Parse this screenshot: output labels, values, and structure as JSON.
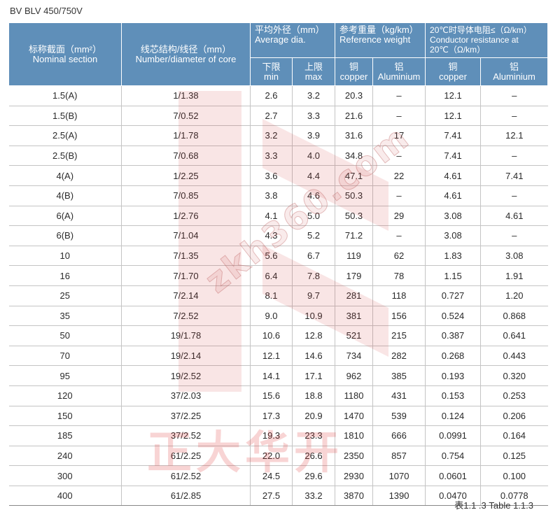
{
  "title": "BV BLV 450/750V",
  "footer": "表1.1 .3 Table 1.1.3",
  "watermark": {
    "url": "zkh360.com",
    "logo_text": "正大华开"
  },
  "colors": {
    "header_bg": "#5f8fb9",
    "header_text": "#ffffff",
    "grid_line": "#c4c4c4"
  },
  "header": {
    "nominal": {
      "cn": "标称截面（mm²）",
      "en": "Nominal section"
    },
    "core": {
      "cn": "线芯结构/线径（mm）",
      "en": "Number/diameter of core"
    },
    "avg_dia": {
      "cn": "平均外径（mm）",
      "en": "Average dia."
    },
    "min": {
      "cn": "下限",
      "en": "min"
    },
    "max": {
      "cn": "上限",
      "en": "max"
    },
    "weight": {
      "cn": "参考重量（kg/km）",
      "en": "Reference weight"
    },
    "copper_w": {
      "cn": "铜",
      "en": "copper"
    },
    "alum_w": {
      "cn": "铝",
      "en": "Aluminium"
    },
    "resistance": {
      "line1": "20℃时导体电阻≤（Ω/km）",
      "line2": "Conductor resistance at",
      "line3": "20℃（Ω/km）"
    },
    "copper_r": {
      "cn": "铜",
      "en": "copper"
    },
    "alum_r": {
      "cn": "铝",
      "en": "Aluminium"
    }
  },
  "rows": [
    [
      "1.5(A)",
      "1/1.38",
      "2.6",
      "3.2",
      "20.3",
      "–",
      "12.1",
      "–"
    ],
    [
      "1.5(B)",
      "7/0.52",
      "2.7",
      "3.3",
      "21.6",
      "–",
      "12.1",
      "–"
    ],
    [
      "2.5(A)",
      "1/1.78",
      "3.2",
      "3.9",
      "31.6",
      "17",
      "7.41",
      "12.1"
    ],
    [
      "2.5(B)",
      "7/0.68",
      "3.3",
      "4.0",
      "34.8",
      "–",
      "7.41",
      "–"
    ],
    [
      "4(A)",
      "1/2.25",
      "3.6",
      "4.4",
      "47.1",
      "22",
      "4.61",
      "7.41"
    ],
    [
      "4(B)",
      "7/0.85",
      "3.8",
      "4.6",
      "50.3",
      "–",
      "4.61",
      "–"
    ],
    [
      "6(A)",
      "1/2.76",
      "4.1",
      "5.0",
      "50.3",
      "29",
      "3.08",
      "4.61"
    ],
    [
      "6(B)",
      "7/1.04",
      "4.3",
      "5.2",
      "71.2",
      "–",
      "3.08",
      "–"
    ],
    [
      "10",
      "7/1.35",
      "5.6",
      "6.7",
      "119",
      "62",
      "1.83",
      "3.08"
    ],
    [
      "16",
      "7/1.70",
      "6.4",
      "7.8",
      "179",
      "78",
      "1.15",
      "1.91"
    ],
    [
      "25",
      "7/2.14",
      "8.1",
      "9.7",
      "281",
      "118",
      "0.727",
      "1.20"
    ],
    [
      "35",
      "7/2.52",
      "9.0",
      "10.9",
      "381",
      "156",
      "0.524",
      "0.868"
    ],
    [
      "50",
      "19/1.78",
      "10.6",
      "12.8",
      "521",
      "215",
      "0.387",
      "0.641"
    ],
    [
      "70",
      "19/2.14",
      "12.1",
      "14.6",
      "734",
      "282",
      "0.268",
      "0.443"
    ],
    [
      "95",
      "19/2.52",
      "14.1",
      "17.1",
      "962",
      "385",
      "0.193",
      "0.320"
    ],
    [
      "120",
      "37/2.03",
      "15.6",
      "18.8",
      "1180",
      "431",
      "0.153",
      "0.253"
    ],
    [
      "150",
      "37/2.25",
      "17.3",
      "20.9",
      "1470",
      "539",
      "0.124",
      "0.206"
    ],
    [
      "185",
      "37/2.52",
      "19.3",
      "23.3",
      "1810",
      "666",
      "0.0991",
      "0.164"
    ],
    [
      "240",
      "61/2.25",
      "22.0",
      "26.6",
      "2350",
      "857",
      "0.754",
      "0.125"
    ],
    [
      "300",
      "61/2.52",
      "24.5",
      "29.6",
      "2930",
      "1070",
      "0.0601",
      "0.100"
    ],
    [
      "400",
      "61/2.85",
      "27.5",
      "33.2",
      "3870",
      "1390",
      "0.0470",
      "0.0778"
    ]
  ]
}
